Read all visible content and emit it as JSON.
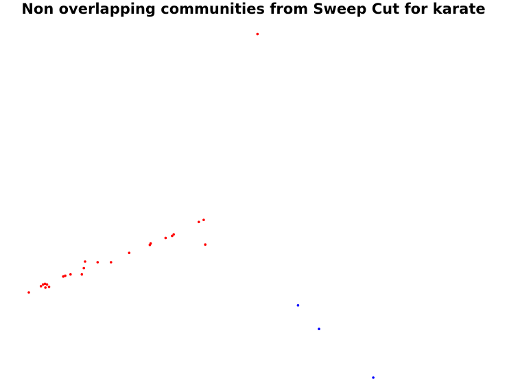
{
  "title": "Non overlapping communities from Sweep Cut for karate",
  "chart_data": {
    "type": "scatter",
    "title": "Non overlapping communities from Sweep Cut for karate",
    "xlabel": "",
    "ylabel": "",
    "axes_visible": false,
    "grid": false,
    "xlim": [
      0,
      1
    ],
    "ylim": [
      0,
      1
    ],
    "series": [
      {
        "color": "#ff0000",
        "points": [
          {
            "x": 0.565,
            "y": 0.989
          },
          {
            "x": 0.0,
            "y": 0.245
          },
          {
            "x": 0.03,
            "y": 0.263
          },
          {
            "x": 0.035,
            "y": 0.268
          },
          {
            "x": 0.04,
            "y": 0.27
          },
          {
            "x": 0.041,
            "y": 0.259
          },
          {
            "x": 0.045,
            "y": 0.268
          },
          {
            "x": 0.05,
            "y": 0.261
          },
          {
            "x": 0.085,
            "y": 0.291
          },
          {
            "x": 0.09,
            "y": 0.293
          },
          {
            "x": 0.103,
            "y": 0.297
          },
          {
            "x": 0.131,
            "y": 0.297
          },
          {
            "x": 0.136,
            "y": 0.315
          },
          {
            "x": 0.139,
            "y": 0.334
          },
          {
            "x": 0.17,
            "y": 0.332
          },
          {
            "x": 0.203,
            "y": 0.332
          },
          {
            "x": 0.248,
            "y": 0.359
          },
          {
            "x": 0.299,
            "y": 0.382
          },
          {
            "x": 0.301,
            "y": 0.386
          },
          {
            "x": 0.338,
            "y": 0.402
          },
          {
            "x": 0.354,
            "y": 0.408
          },
          {
            "x": 0.358,
            "y": 0.412
          },
          {
            "x": 0.42,
            "y": 0.448
          },
          {
            "x": 0.432,
            "y": 0.454
          },
          {
            "x": 0.436,
            "y": 0.383
          }
        ]
      },
      {
        "color": "#0000ff",
        "points": [
          {
            "x": 0.665,
            "y": 0.208
          },
          {
            "x": 0.717,
            "y": 0.14
          },
          {
            "x": 0.851,
            "y": 0.0
          }
        ]
      }
    ]
  }
}
